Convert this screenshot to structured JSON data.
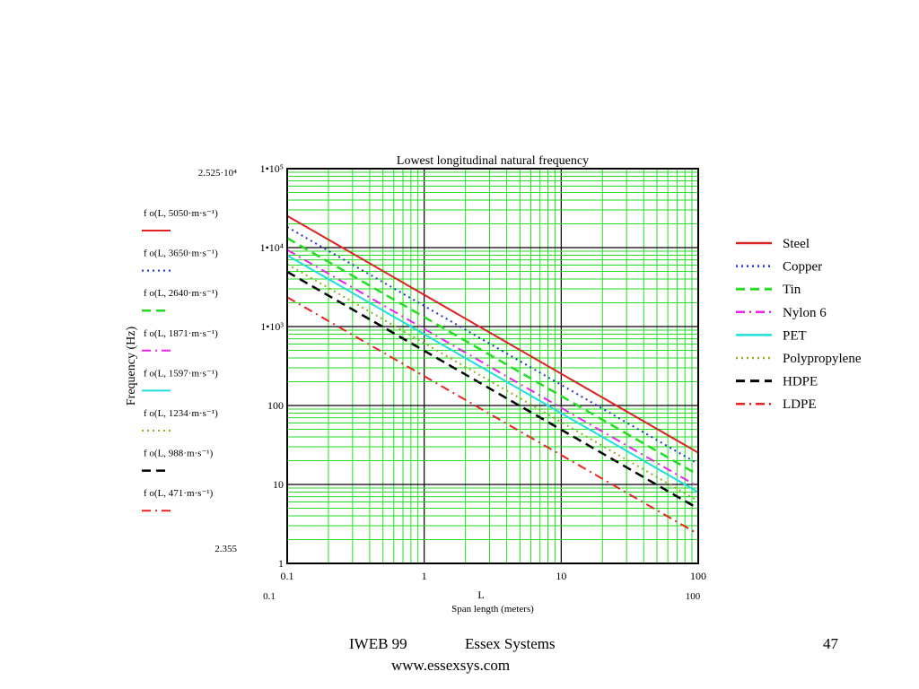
{
  "chart_data": {
    "type": "line",
    "title": "Lowest longitudinal natural frequency",
    "xlabel": "L",
    "xlabel_sub": "Span length (meters)",
    "ylabel": "Frequency (Hz)",
    "x_scale": "log",
    "y_scale": "log",
    "xlim": [
      0.1,
      100
    ],
    "ylim": [
      1,
      100000
    ],
    "grid": true,
    "legend_position": "right",
    "x_ticks": [
      "0.1",
      "1",
      "10",
      "100"
    ],
    "y_ticks": [
      "1",
      "10",
      "100",
      "1•10³",
      "1•10⁴",
      "1•10⁵"
    ],
    "y_range_top_label": "2.525·10⁴",
    "y_range_bottom_label": "2.355",
    "x_range_left_label": "0.1",
    "x_range_right_label": "100",
    "series": [
      {
        "name": "Steel",
        "expr": "f o(L, 5050·m·s⁻¹)",
        "x": [
          0.1,
          100
        ],
        "y": [
          25250,
          25.25
        ],
        "color": "#dd2222",
        "style": "solid"
      },
      {
        "name": "Copper",
        "expr": "f o(L, 3650·m·s⁻¹)",
        "x": [
          0.1,
          100
        ],
        "y": [
          18250,
          18.25
        ],
        "color": "#2233cc",
        "style": "dotted"
      },
      {
        "name": "Tin",
        "expr": "f o(L, 2640·m·s⁻¹)",
        "x": [
          0.1,
          100
        ],
        "y": [
          13200,
          13.2
        ],
        "color": "#22dd22",
        "style": "dashed"
      },
      {
        "name": "Nylon 6",
        "expr": "f o(L, 1871·m·s⁻¹)",
        "x": [
          0.1,
          100
        ],
        "y": [
          9355,
          9.355
        ],
        "color": "#ee22ee",
        "style": "dashdot"
      },
      {
        "name": "PET",
        "expr": "f o(L, 1597·m·s⁻¹)",
        "x": [
          0.1,
          100
        ],
        "y": [
          7985,
          7.985
        ],
        "color": "#22dddd",
        "style": "solid"
      },
      {
        "name": "Polypropylene",
        "expr": "f o(L, 1234·m·s⁻¹)",
        "x": [
          0.1,
          100
        ],
        "y": [
          6170,
          6.17
        ],
        "color": "#99aa22",
        "style": "dotted"
      },
      {
        "name": "HDPE",
        "expr": "f o(L, 988·m·s⁻¹)",
        "x": [
          0.1,
          100
        ],
        "y": [
          4940,
          4.94
        ],
        "color": "#000000",
        "style": "dashed"
      },
      {
        "name": "LDPE",
        "expr": "f o(L, 471·m·s⁻¹)",
        "x": [
          0.1,
          100
        ],
        "y": [
          2355,
          2.355
        ],
        "color": "#ee2222",
        "style": "dashdot"
      }
    ]
  },
  "footer": {
    "left": "IWEB 99",
    "center": "Essex Systems",
    "url": "www.essexsys.com",
    "page": "47"
  },
  "colors": {
    "grid": "#22dd22",
    "major_grid": "#000000"
  }
}
